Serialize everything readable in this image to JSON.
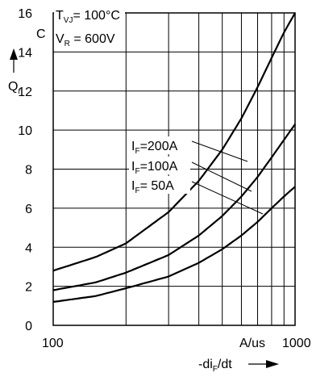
{
  "chart_data": {
    "type": "line",
    "title": "",
    "xlabel_main": "-di",
    "xlabel_sub": "F",
    "xlabel_tail": "/dt",
    "ylabel_main": "Q",
    "ylabel_sub": "r",
    "ylabel_unit": "C",
    "x_unit_label": "A/us",
    "x_scale": "log",
    "xlim": [
      100,
      1000
    ],
    "ylim": [
      0,
      16
    ],
    "grid": true,
    "x_tick_labels": [
      "100",
      "1000"
    ],
    "y_ticks": [
      0,
      2,
      4,
      6,
      8,
      10,
      12,
      14,
      16
    ],
    "conditions": [
      {
        "main": "T",
        "sub": "VJ",
        "rest": "= 100°C"
      },
      {
        "main": "V",
        "sub": "R",
        "rest": " = 600V"
      }
    ],
    "series": [
      {
        "name_main": "I",
        "name_sub": "F",
        "name_rest": "=200A",
        "x": [
          100,
          150,
          200,
          300,
          400,
          500,
          600,
          700,
          800,
          900,
          1000
        ],
        "y": [
          2.8,
          3.5,
          4.2,
          5.8,
          7.4,
          9.0,
          10.6,
          12.2,
          13.7,
          15.0,
          16.0
        ]
      },
      {
        "name_main": "I",
        "name_sub": "F",
        "name_rest": "=100A",
        "x": [
          100,
          150,
          200,
          300,
          400,
          500,
          600,
          700,
          800,
          900,
          1000
        ],
        "y": [
          1.8,
          2.2,
          2.7,
          3.6,
          4.6,
          5.6,
          6.6,
          7.6,
          8.6,
          9.5,
          10.3
        ]
      },
      {
        "name_main": "I",
        "name_sub": "F",
        "name_rest": "=  50A",
        "x": [
          100,
          150,
          200,
          300,
          400,
          500,
          600,
          700,
          800,
          900,
          1000
        ],
        "y": [
          1.2,
          1.5,
          1.9,
          2.5,
          3.2,
          3.9,
          4.6,
          5.3,
          6.0,
          6.6,
          7.1
        ]
      }
    ]
  }
}
